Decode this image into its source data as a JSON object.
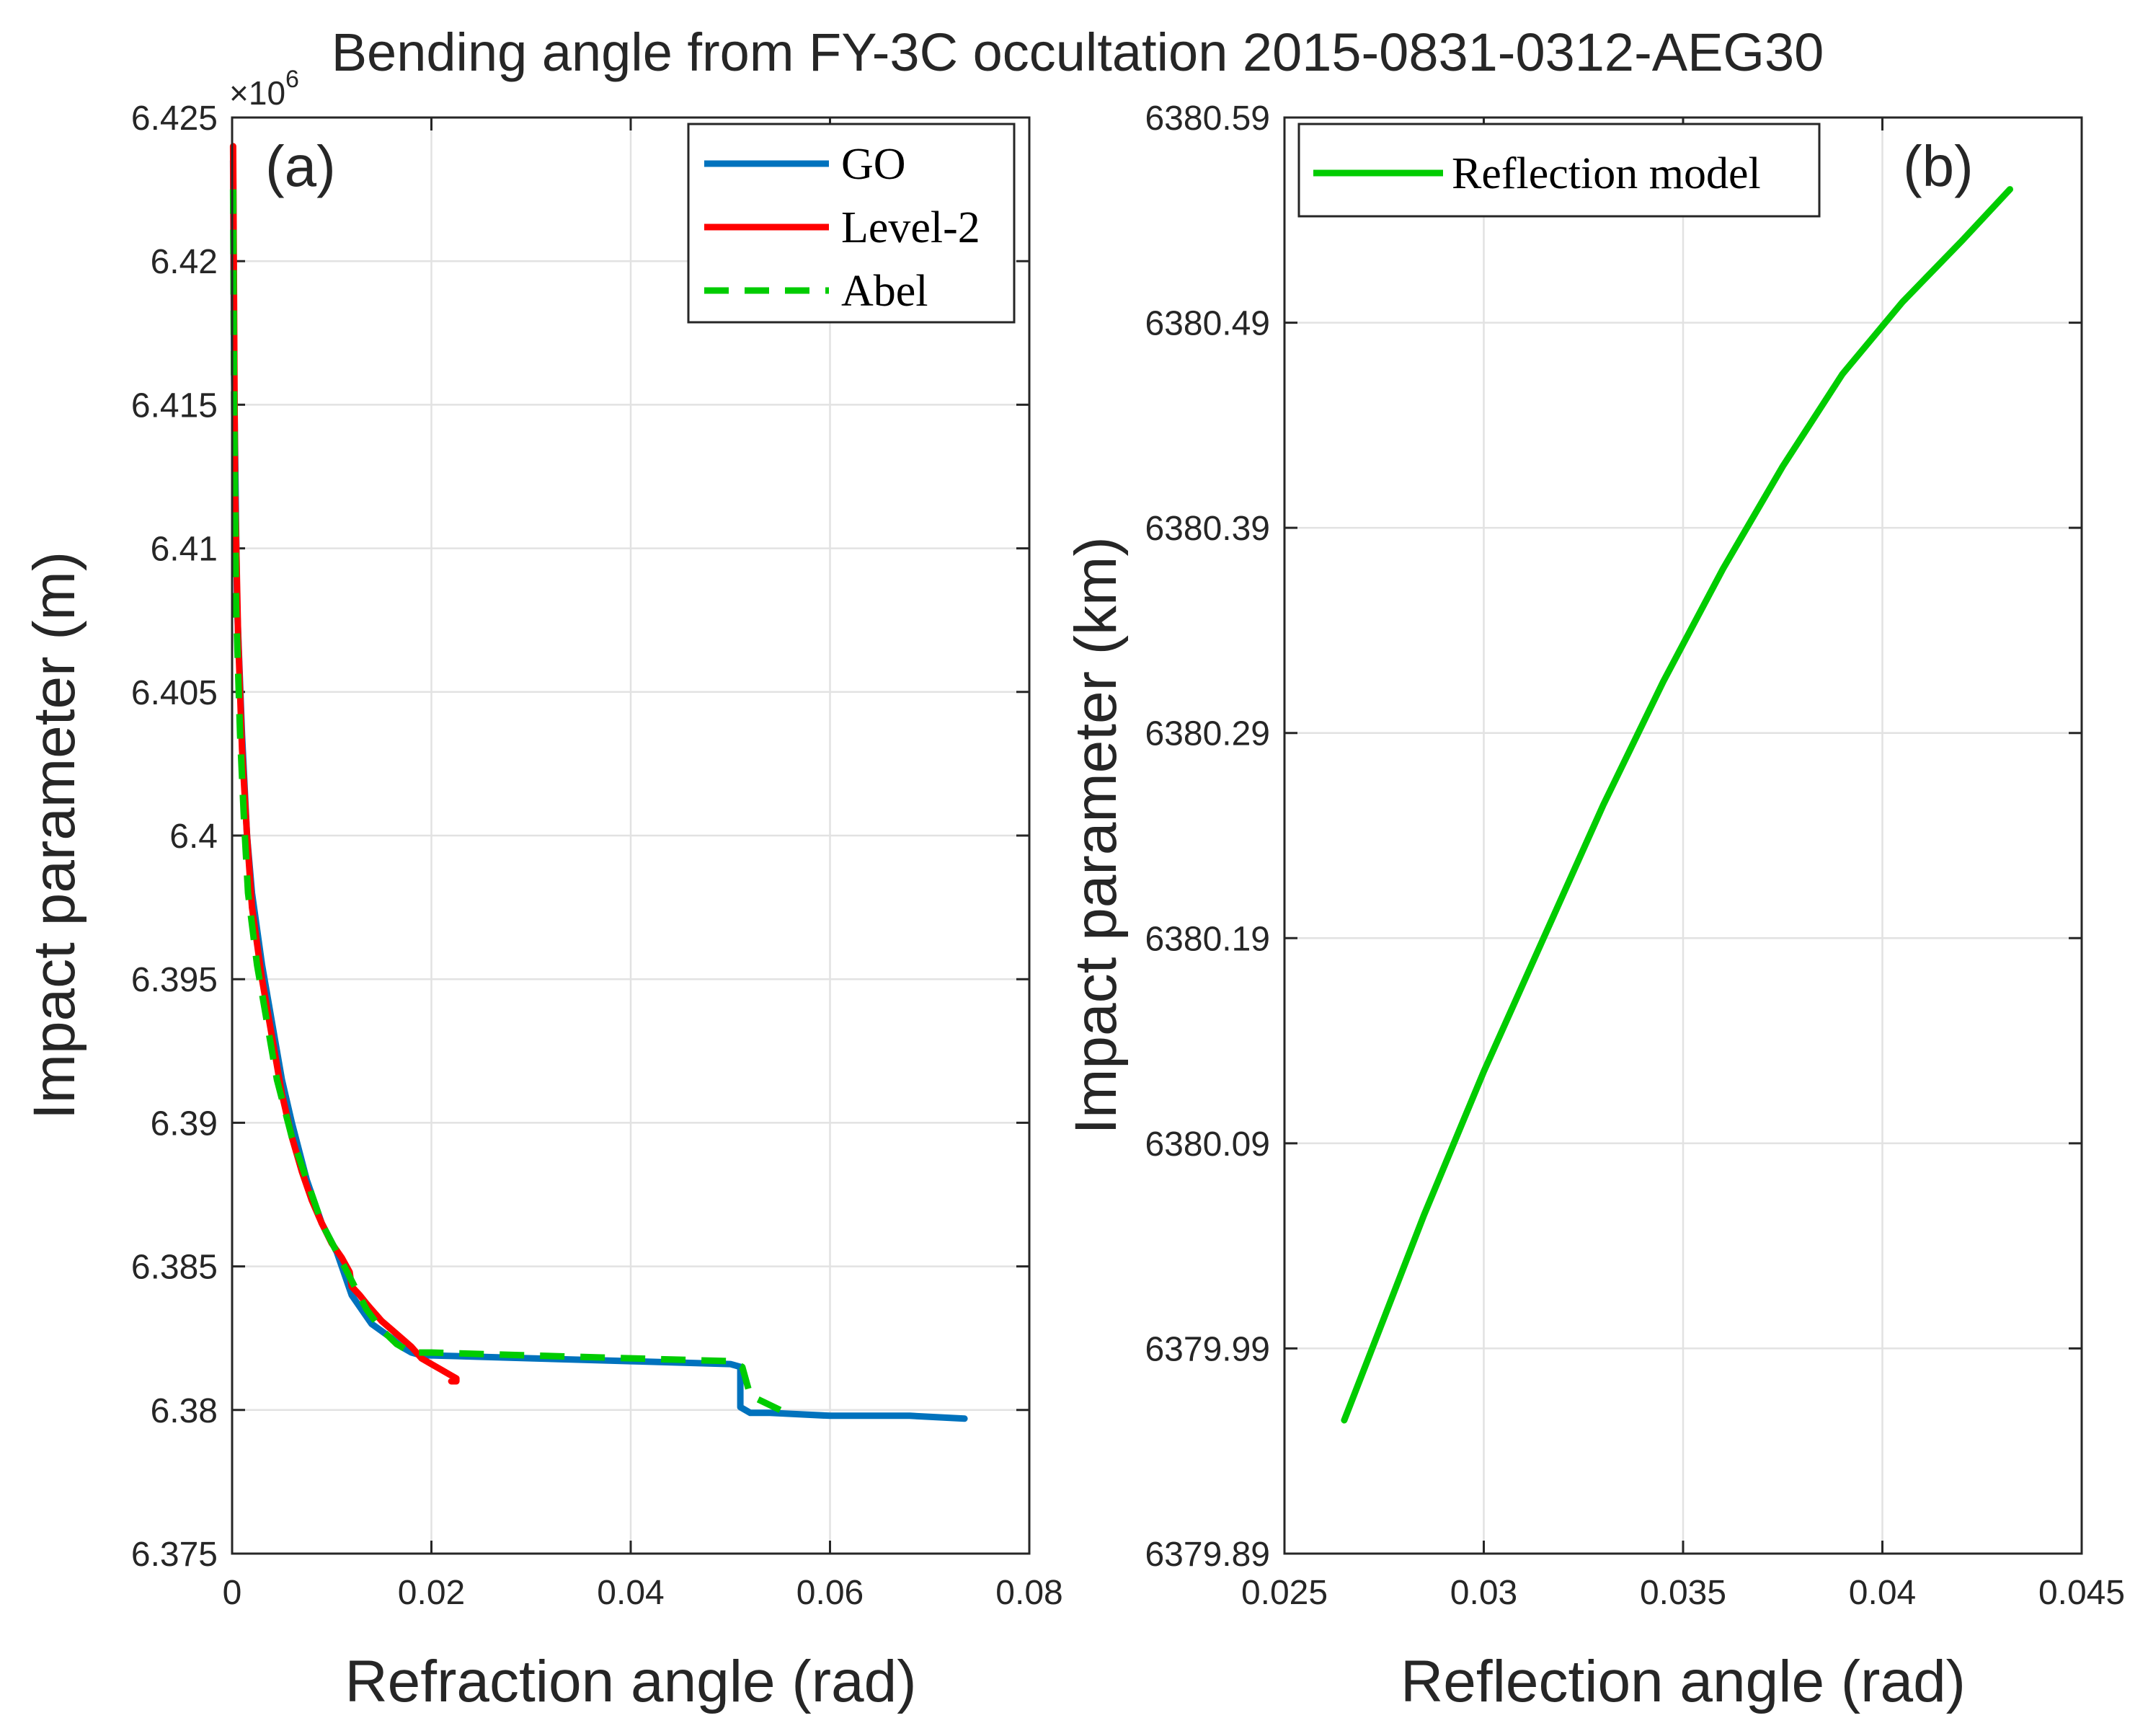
{
  "figure_title": "Bending angle from FY-3C occultation 2015-0831-0312-AEG30",
  "chart_data": [
    {
      "panel": "(a)",
      "type": "line",
      "xlabel": "Refraction angle (rad)",
      "ylabel": "Impact parameter (m)",
      "y_exponent": "×10",
      "y_exponent_power": "6",
      "xlim": [
        0,
        0.08
      ],
      "ylim": [
        6.375,
        6.425
      ],
      "xticks": [
        0,
        0.02,
        0.04,
        0.06,
        0.08
      ],
      "xtick_labels": [
        "0",
        "0.02",
        "0.04",
        "0.06",
        "0.08"
      ],
      "yticks": [
        6.375,
        6.38,
        6.385,
        6.39,
        6.395,
        6.4,
        6.405,
        6.41,
        6.415,
        6.42,
        6.425
      ],
      "ytick_labels": [
        "6.375",
        "6.38",
        "6.385",
        "6.39",
        "6.395",
        "6.4",
        "6.405",
        "6.41",
        "6.415",
        "6.42",
        "6.425"
      ],
      "grid": true,
      "legend_position": "top-right",
      "series": [
        {
          "name": "GO",
          "color": "#0072bd",
          "style": "solid",
          "x": [
            0.0001,
            0.0002,
            0.0005,
            0.001,
            0.0015,
            0.002,
            0.003,
            0.004,
            0.005,
            0.006,
            0.0075,
            0.009,
            0.0105,
            0.012,
            0.013,
            0.014,
            0.016,
            0.017,
            0.018,
            0.019,
            0.02,
            0.03,
            0.04,
            0.05,
            0.051,
            0.051,
            0.052,
            0.054,
            0.06,
            0.068,
            0.0735
          ],
          "y": [
            6.4235,
            6.416,
            6.408,
            6.4035,
            6.4,
            6.398,
            6.3955,
            6.3935,
            6.3915,
            6.39,
            6.388,
            6.3865,
            6.3855,
            6.384,
            6.3835,
            6.383,
            6.3825,
            6.3822,
            6.382,
            6.3819,
            6.3819,
            6.3818,
            6.3817,
            6.3816,
            6.3815,
            6.3801,
            6.3799,
            6.3799,
            6.3798,
            6.3798,
            6.3797
          ]
        },
        {
          "name": "Level-2",
          "color": "#ff0000",
          "style": "solid",
          "x": [
            0.0001,
            0.0002,
            0.0003,
            0.0006,
            0.001,
            0.0015,
            0.002,
            0.003,
            0.004,
            0.005,
            0.006,
            0.007,
            0.008,
            0.009,
            0.01,
            0.011,
            0.0118,
            0.012,
            0.0128,
            0.0135,
            0.014,
            0.0145,
            0.015,
            0.016,
            0.017,
            0.018,
            0.019,
            0.02,
            0.021,
            0.022,
            0.0225,
            0.0225,
            0.022
          ],
          "y": [
            6.424,
            6.418,
            6.412,
            6.407,
            6.403,
            6.4,
            6.3975,
            6.395,
            6.393,
            6.391,
            6.3895,
            6.3883,
            6.3873,
            6.3865,
            6.3858,
            6.3853,
            6.3848,
            6.3843,
            6.384,
            6.3837,
            6.3835,
            6.3833,
            6.3831,
            6.3828,
            6.3825,
            6.3822,
            6.3818,
            6.3816,
            6.3814,
            6.3812,
            6.3811,
            6.381,
            6.381
          ]
        },
        {
          "name": "Abel",
          "color": "#00cc00",
          "style": "dashed",
          "x": [
            0.0001,
            0.0002,
            0.0004,
            0.0008,
            0.0012,
            0.0016,
            0.0025,
            0.0035,
            0.0045,
            0.006,
            0.0075,
            0.009,
            0.0105,
            0.012,
            0.0135,
            0.015,
            0.0165,
            0.018,
            0.02,
            0.03,
            0.04,
            0.05,
            0.0512,
            0.052,
            0.055
          ],
          "y": [
            6.4225,
            6.415,
            6.408,
            6.4035,
            6.4005,
            6.398,
            6.3955,
            6.3935,
            6.3915,
            6.3895,
            6.388,
            6.3865,
            6.3855,
            6.3845,
            6.3835,
            6.3828,
            6.3823,
            6.382,
            6.382,
            6.3819,
            6.3818,
            6.3817,
            6.3815,
            6.3805,
            6.38
          ]
        }
      ]
    },
    {
      "panel": "(b)",
      "type": "line",
      "xlabel": "Reflection angle (rad)",
      "ylabel": "Impact parameter (km)",
      "xlim": [
        0.025,
        0.045
      ],
      "ylim": [
        6379.89,
        6380.59
      ],
      "xticks": [
        0.025,
        0.03,
        0.035,
        0.04,
        0.045
      ],
      "xtick_labels": [
        "0.025",
        "0.03",
        "0.035",
        "0.04",
        "0.045"
      ],
      "yticks": [
        6379.89,
        6379.99,
        6380.09,
        6380.19,
        6380.29,
        6380.39,
        6380.49,
        6380.59
      ],
      "ytick_labels": [
        "6379.89",
        "6379.99",
        "6380.09",
        "6380.19",
        "6380.29",
        "6380.39",
        "6380.49",
        "6380.59"
      ],
      "grid": true,
      "legend_position": "top-left",
      "series": [
        {
          "name": "Reflection model",
          "color": "#00cc00",
          "style": "solid",
          "x": [
            0.0265,
            0.0275,
            0.0285,
            0.03,
            0.0315,
            0.033,
            0.0345,
            0.036,
            0.0375,
            0.039,
            0.0405,
            0.042,
            0.0432
          ],
          "y": [
            6379.955,
            6380.005,
            6380.055,
            6380.125,
            6380.19,
            6380.255,
            6380.315,
            6380.37,
            6380.42,
            6380.465,
            6380.5,
            6380.53,
            6380.555
          ]
        }
      ]
    }
  ]
}
